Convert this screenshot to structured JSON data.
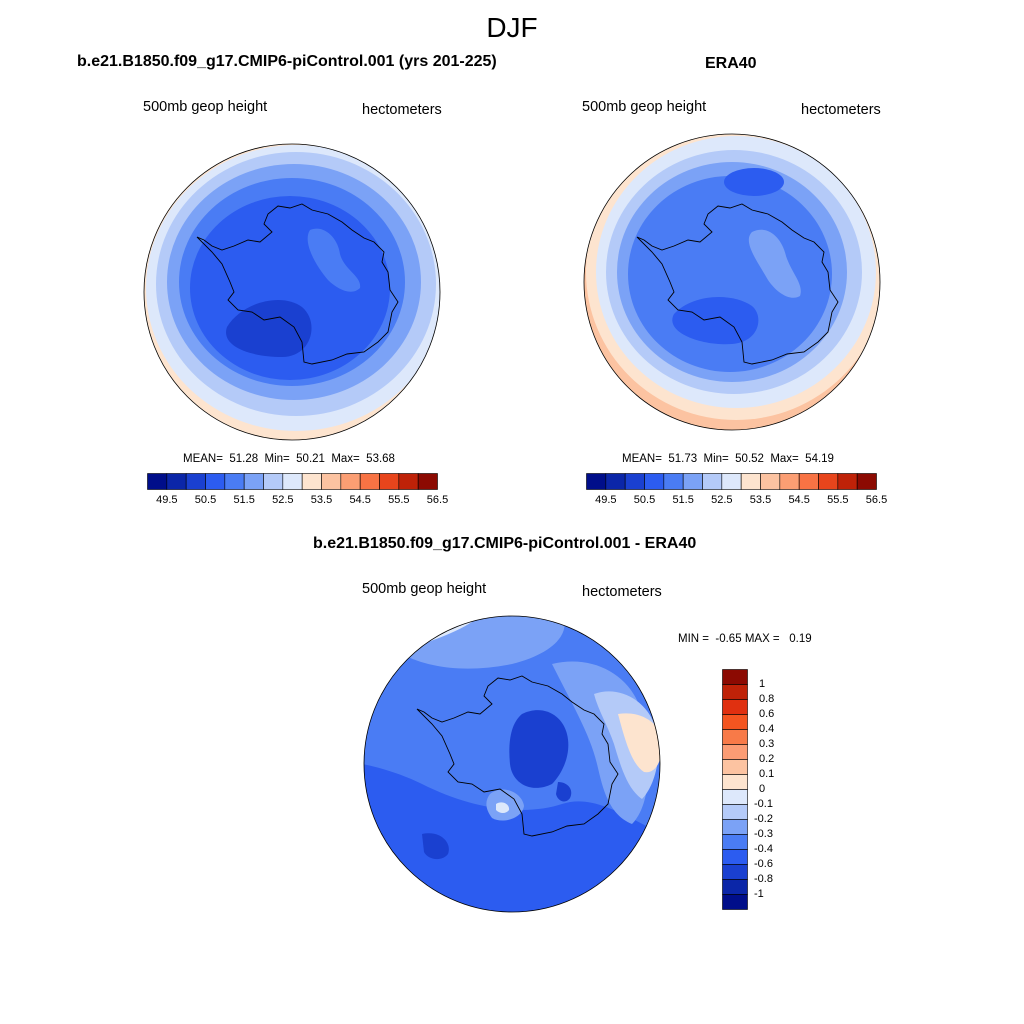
{
  "figure": {
    "title": "DJF"
  },
  "panels": [
    {
      "title": "b.e21.B1850.f09_g17.CMIP6-piControl.001 (yrs 201-225)",
      "left_label": "500mb geop height",
      "right_label": "hectometers",
      "stats": {
        "mean_label": "MEAN=",
        "mean": "51.28",
        "min_label": "Min=",
        "min": "50.21",
        "max_label": "Max=",
        "max": "53.68"
      }
    },
    {
      "title": "ERA40",
      "left_label": "500mb geop height",
      "right_label": "hectometers",
      "stats": {
        "mean_label": "MEAN=",
        "mean": "51.73",
        "min_label": "Min=",
        "min": "50.52",
        "max_label": "Max=",
        "max": "54.19"
      }
    },
    {
      "title": "b.e21.B1850.f09_g17.CMIP6-piControl.001 - ERA40",
      "left_label": "500mb geop height",
      "right_label": "hectometers",
      "stats": {
        "min_label": "MIN =",
        "min": "-0.65",
        "max_label": "MAX =",
        "max": "0.19"
      }
    }
  ],
  "colorbar_abs": {
    "ticks": [
      "49.5",
      "50.5",
      "51.5",
      "52.5",
      "53.5",
      "54.5",
      "55.5",
      "56.5"
    ],
    "colors": [
      "#000e8a",
      "#0b26a8",
      "#1a40d0",
      "#2c5cf0",
      "#4a7cf4",
      "#7ba2f6",
      "#b4caf8",
      "#dde8fb",
      "#fde4cf",
      "#fcc3a1",
      "#fb9e73",
      "#f87344",
      "#e8451c",
      "#bf2208",
      "#8c0a02"
    ]
  },
  "colorbar_diff": {
    "labels": [
      "1",
      "0.8",
      "0.6",
      "0.4",
      "0.3",
      "0.2",
      "0.1",
      "0",
      "-0.1",
      "-0.2",
      "-0.3",
      "-0.4",
      "-0.6",
      "-0.8",
      "-1"
    ],
    "colors": [
      "#8c0a02",
      "#bf2208",
      "#e03010",
      "#f45520",
      "#f87a48",
      "#fb9c74",
      "#fcc3a1",
      "#fde4cf",
      "#dde8fb",
      "#b4caf8",
      "#7ba2f6",
      "#4a7cf4",
      "#2c5cf0",
      "#1a40d0",
      "#0b26a8",
      "#000e8a"
    ]
  }
}
